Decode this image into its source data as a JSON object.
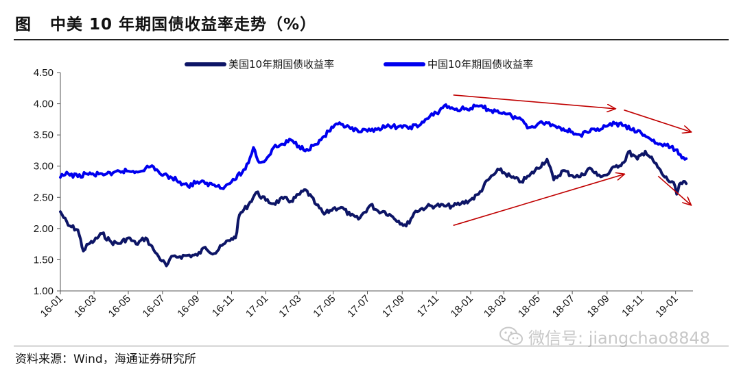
{
  "header": {
    "title": "图   中美 10 年期国债收益率走势（%）"
  },
  "footer": {
    "source": "资料来源：Wind，海通证券研究所",
    "watermark": "微信号: jiangchao8848"
  },
  "chart_data": {
    "type": "line",
    "title": "",
    "xlabel": "",
    "ylabel": "",
    "ylim": [
      1.0,
      4.5
    ],
    "y_ticks": [
      "1.00",
      "1.50",
      "2.00",
      "2.50",
      "3.00",
      "3.50",
      "4.00",
      "4.50"
    ],
    "x_range": [
      "2016-01",
      "2019-02"
    ],
    "x_ticks": [
      "16-01",
      "16-03",
      "16-05",
      "16-07",
      "16-09",
      "16-11",
      "17-01",
      "17-03",
      "17-05",
      "17-07",
      "17-09",
      "17-11",
      "18-01",
      "18-03",
      "18-05",
      "18-07",
      "18-09",
      "18-11",
      "19-01"
    ],
    "legend_position": "top",
    "grid": false,
    "series": [
      {
        "name": "美国10年期国债收益率",
        "color": "#0d1566",
        "points": [
          [
            "2016-01-01",
            2.27
          ],
          [
            "2016-01-15",
            2.05
          ],
          [
            "2016-02-01",
            1.98
          ],
          [
            "2016-02-11",
            1.64
          ],
          [
            "2016-02-20",
            1.75
          ],
          [
            "2016-03-01",
            1.8
          ],
          [
            "2016-03-15",
            1.92
          ],
          [
            "2016-04-01",
            1.78
          ],
          [
            "2016-04-15",
            1.76
          ],
          [
            "2016-05-01",
            1.85
          ],
          [
            "2016-05-15",
            1.75
          ],
          [
            "2016-06-01",
            1.85
          ],
          [
            "2016-06-15",
            1.66
          ],
          [
            "2016-06-24",
            1.55
          ],
          [
            "2016-07-08",
            1.4
          ],
          [
            "2016-07-20",
            1.56
          ],
          [
            "2016-08-01",
            1.55
          ],
          [
            "2016-08-15",
            1.57
          ],
          [
            "2016-09-01",
            1.57
          ],
          [
            "2016-09-15",
            1.7
          ],
          [
            "2016-10-01",
            1.6
          ],
          [
            "2016-10-20",
            1.76
          ],
          [
            "2016-11-01",
            1.84
          ],
          [
            "2016-11-08",
            1.85
          ],
          [
            "2016-11-15",
            2.22
          ],
          [
            "2016-12-01",
            2.38
          ],
          [
            "2016-12-15",
            2.58
          ],
          [
            "2017-01-01",
            2.45
          ],
          [
            "2017-01-15",
            2.4
          ],
          [
            "2017-02-01",
            2.48
          ],
          [
            "2017-02-15",
            2.44
          ],
          [
            "2017-03-13",
            2.62
          ],
          [
            "2017-04-01",
            2.38
          ],
          [
            "2017-04-15",
            2.23
          ],
          [
            "2017-05-01",
            2.32
          ],
          [
            "2017-05-15",
            2.34
          ],
          [
            "2017-06-01",
            2.21
          ],
          [
            "2017-06-15",
            2.15
          ],
          [
            "2017-07-07",
            2.38
          ],
          [
            "2017-07-20",
            2.28
          ],
          [
            "2017-08-01",
            2.27
          ],
          [
            "2017-08-15",
            2.19
          ],
          [
            "2017-09-08",
            2.04
          ],
          [
            "2017-09-25",
            2.28
          ],
          [
            "2017-10-15",
            2.35
          ],
          [
            "2017-11-01",
            2.37
          ],
          [
            "2017-11-15",
            2.36
          ],
          [
            "2017-12-01",
            2.36
          ],
          [
            "2017-12-15",
            2.4
          ],
          [
            "2018-01-01",
            2.46
          ],
          [
            "2018-01-15",
            2.55
          ],
          [
            "2018-02-01",
            2.78
          ],
          [
            "2018-02-21",
            2.94
          ],
          [
            "2018-03-15",
            2.82
          ],
          [
            "2018-04-01",
            2.75
          ],
          [
            "2018-04-15",
            2.84
          ],
          [
            "2018-05-17",
            3.11
          ],
          [
            "2018-05-29",
            2.78
          ],
          [
            "2018-06-15",
            2.93
          ],
          [
            "2018-07-01",
            2.85
          ],
          [
            "2018-07-15",
            2.83
          ],
          [
            "2018-08-01",
            2.97
          ],
          [
            "2018-08-15",
            2.85
          ],
          [
            "2018-09-01",
            2.86
          ],
          [
            "2018-09-15",
            2.99
          ],
          [
            "2018-10-01",
            3.06
          ],
          [
            "2018-10-09",
            3.23
          ],
          [
            "2018-10-25",
            3.11
          ],
          [
            "2018-11-08",
            3.24
          ],
          [
            "2018-11-25",
            3.05
          ],
          [
            "2018-12-10",
            2.85
          ],
          [
            "2018-12-31",
            2.68
          ],
          [
            "2019-01-03",
            2.55
          ],
          [
            "2019-01-10",
            2.73
          ],
          [
            "2019-01-20",
            2.72
          ]
        ]
      },
      {
        "name": "中国10年期国债收益率",
        "color": "#0000ee",
        "points": [
          [
            "2016-01-01",
            2.82
          ],
          [
            "2016-01-15",
            2.88
          ],
          [
            "2016-02-01",
            2.83
          ],
          [
            "2016-02-15",
            2.88
          ],
          [
            "2016-03-01",
            2.86
          ],
          [
            "2016-03-15",
            2.88
          ],
          [
            "2016-04-01",
            2.86
          ],
          [
            "2016-04-15",
            2.92
          ],
          [
            "2016-05-01",
            2.92
          ],
          [
            "2016-05-15",
            2.91
          ],
          [
            "2016-06-01",
            2.97
          ],
          [
            "2016-06-15",
            2.99
          ],
          [
            "2016-07-01",
            2.85
          ],
          [
            "2016-07-15",
            2.83
          ],
          [
            "2016-08-01",
            2.75
          ],
          [
            "2016-08-15",
            2.68
          ],
          [
            "2016-09-01",
            2.75
          ],
          [
            "2016-09-15",
            2.72
          ],
          [
            "2016-10-01",
            2.7
          ],
          [
            "2016-10-20",
            2.67
          ],
          [
            "2016-11-01",
            2.75
          ],
          [
            "2016-11-20",
            2.9
          ],
          [
            "2016-12-01",
            3.05
          ],
          [
            "2016-12-10",
            3.3
          ],
          [
            "2016-12-20",
            3.06
          ],
          [
            "2017-01-01",
            3.1
          ],
          [
            "2017-01-15",
            3.3
          ],
          [
            "2017-02-01",
            3.35
          ],
          [
            "2017-02-15",
            3.42
          ],
          [
            "2017-03-01",
            3.32
          ],
          [
            "2017-03-15",
            3.27
          ],
          [
            "2017-04-01",
            3.35
          ],
          [
            "2017-04-15",
            3.48
          ],
          [
            "2017-05-01",
            3.62
          ],
          [
            "2017-05-15",
            3.67
          ],
          [
            "2017-06-01",
            3.6
          ],
          [
            "2017-06-15",
            3.55
          ],
          [
            "2017-07-01",
            3.56
          ],
          [
            "2017-07-15",
            3.6
          ],
          [
            "2017-08-01",
            3.62
          ],
          [
            "2017-08-15",
            3.64
          ],
          [
            "2017-09-01",
            3.62
          ],
          [
            "2017-09-15",
            3.63
          ],
          [
            "2017-10-01",
            3.65
          ],
          [
            "2017-10-15",
            3.76
          ],
          [
            "2017-11-01",
            3.85
          ],
          [
            "2017-11-15",
            3.97
          ],
          [
            "2017-12-01",
            3.92
          ],
          [
            "2017-12-15",
            3.91
          ],
          [
            "2018-01-01",
            3.93
          ],
          [
            "2018-01-15",
            3.96
          ],
          [
            "2018-02-01",
            3.91
          ],
          [
            "2018-02-15",
            3.88
          ],
          [
            "2018-03-01",
            3.86
          ],
          [
            "2018-03-15",
            3.8
          ],
          [
            "2018-04-01",
            3.75
          ],
          [
            "2018-04-15",
            3.62
          ],
          [
            "2018-05-01",
            3.68
          ],
          [
            "2018-05-15",
            3.7
          ],
          [
            "2018-06-01",
            3.64
          ],
          [
            "2018-06-15",
            3.6
          ],
          [
            "2018-07-01",
            3.55
          ],
          [
            "2018-07-15",
            3.5
          ],
          [
            "2018-08-01",
            3.55
          ],
          [
            "2018-08-15",
            3.6
          ],
          [
            "2018-09-01",
            3.64
          ],
          [
            "2018-09-15",
            3.68
          ],
          [
            "2018-10-01",
            3.65
          ],
          [
            "2018-10-15",
            3.58
          ],
          [
            "2018-11-01",
            3.53
          ],
          [
            "2018-11-15",
            3.45
          ],
          [
            "2018-12-01",
            3.35
          ],
          [
            "2018-12-15",
            3.33
          ],
          [
            "2019-01-01",
            3.26
          ],
          [
            "2019-01-15",
            3.14
          ],
          [
            "2019-01-20",
            3.12
          ]
        ]
      }
    ],
    "annotations": [
      {
        "type": "arrow",
        "color": "#c00000",
        "trend": "down",
        "from": [
          "2017-12-01",
          4.14
        ],
        "to": [
          "2018-09-15",
          3.92
        ]
      },
      {
        "type": "arrow",
        "color": "#c00000",
        "trend": "down",
        "from": [
          "2018-10-01",
          3.9
        ],
        "to": [
          "2019-01-28",
          3.55
        ]
      },
      {
        "type": "arrow",
        "color": "#c00000",
        "trend": "up",
        "from": [
          "2017-12-01",
          2.05
        ],
        "to": [
          "2018-10-01",
          2.87
        ]
      },
      {
        "type": "arrow",
        "color": "#c00000",
        "trend": "down",
        "from": [
          "2018-12-01",
          2.84
        ],
        "to": [
          "2019-01-28",
          2.38
        ]
      }
    ]
  }
}
